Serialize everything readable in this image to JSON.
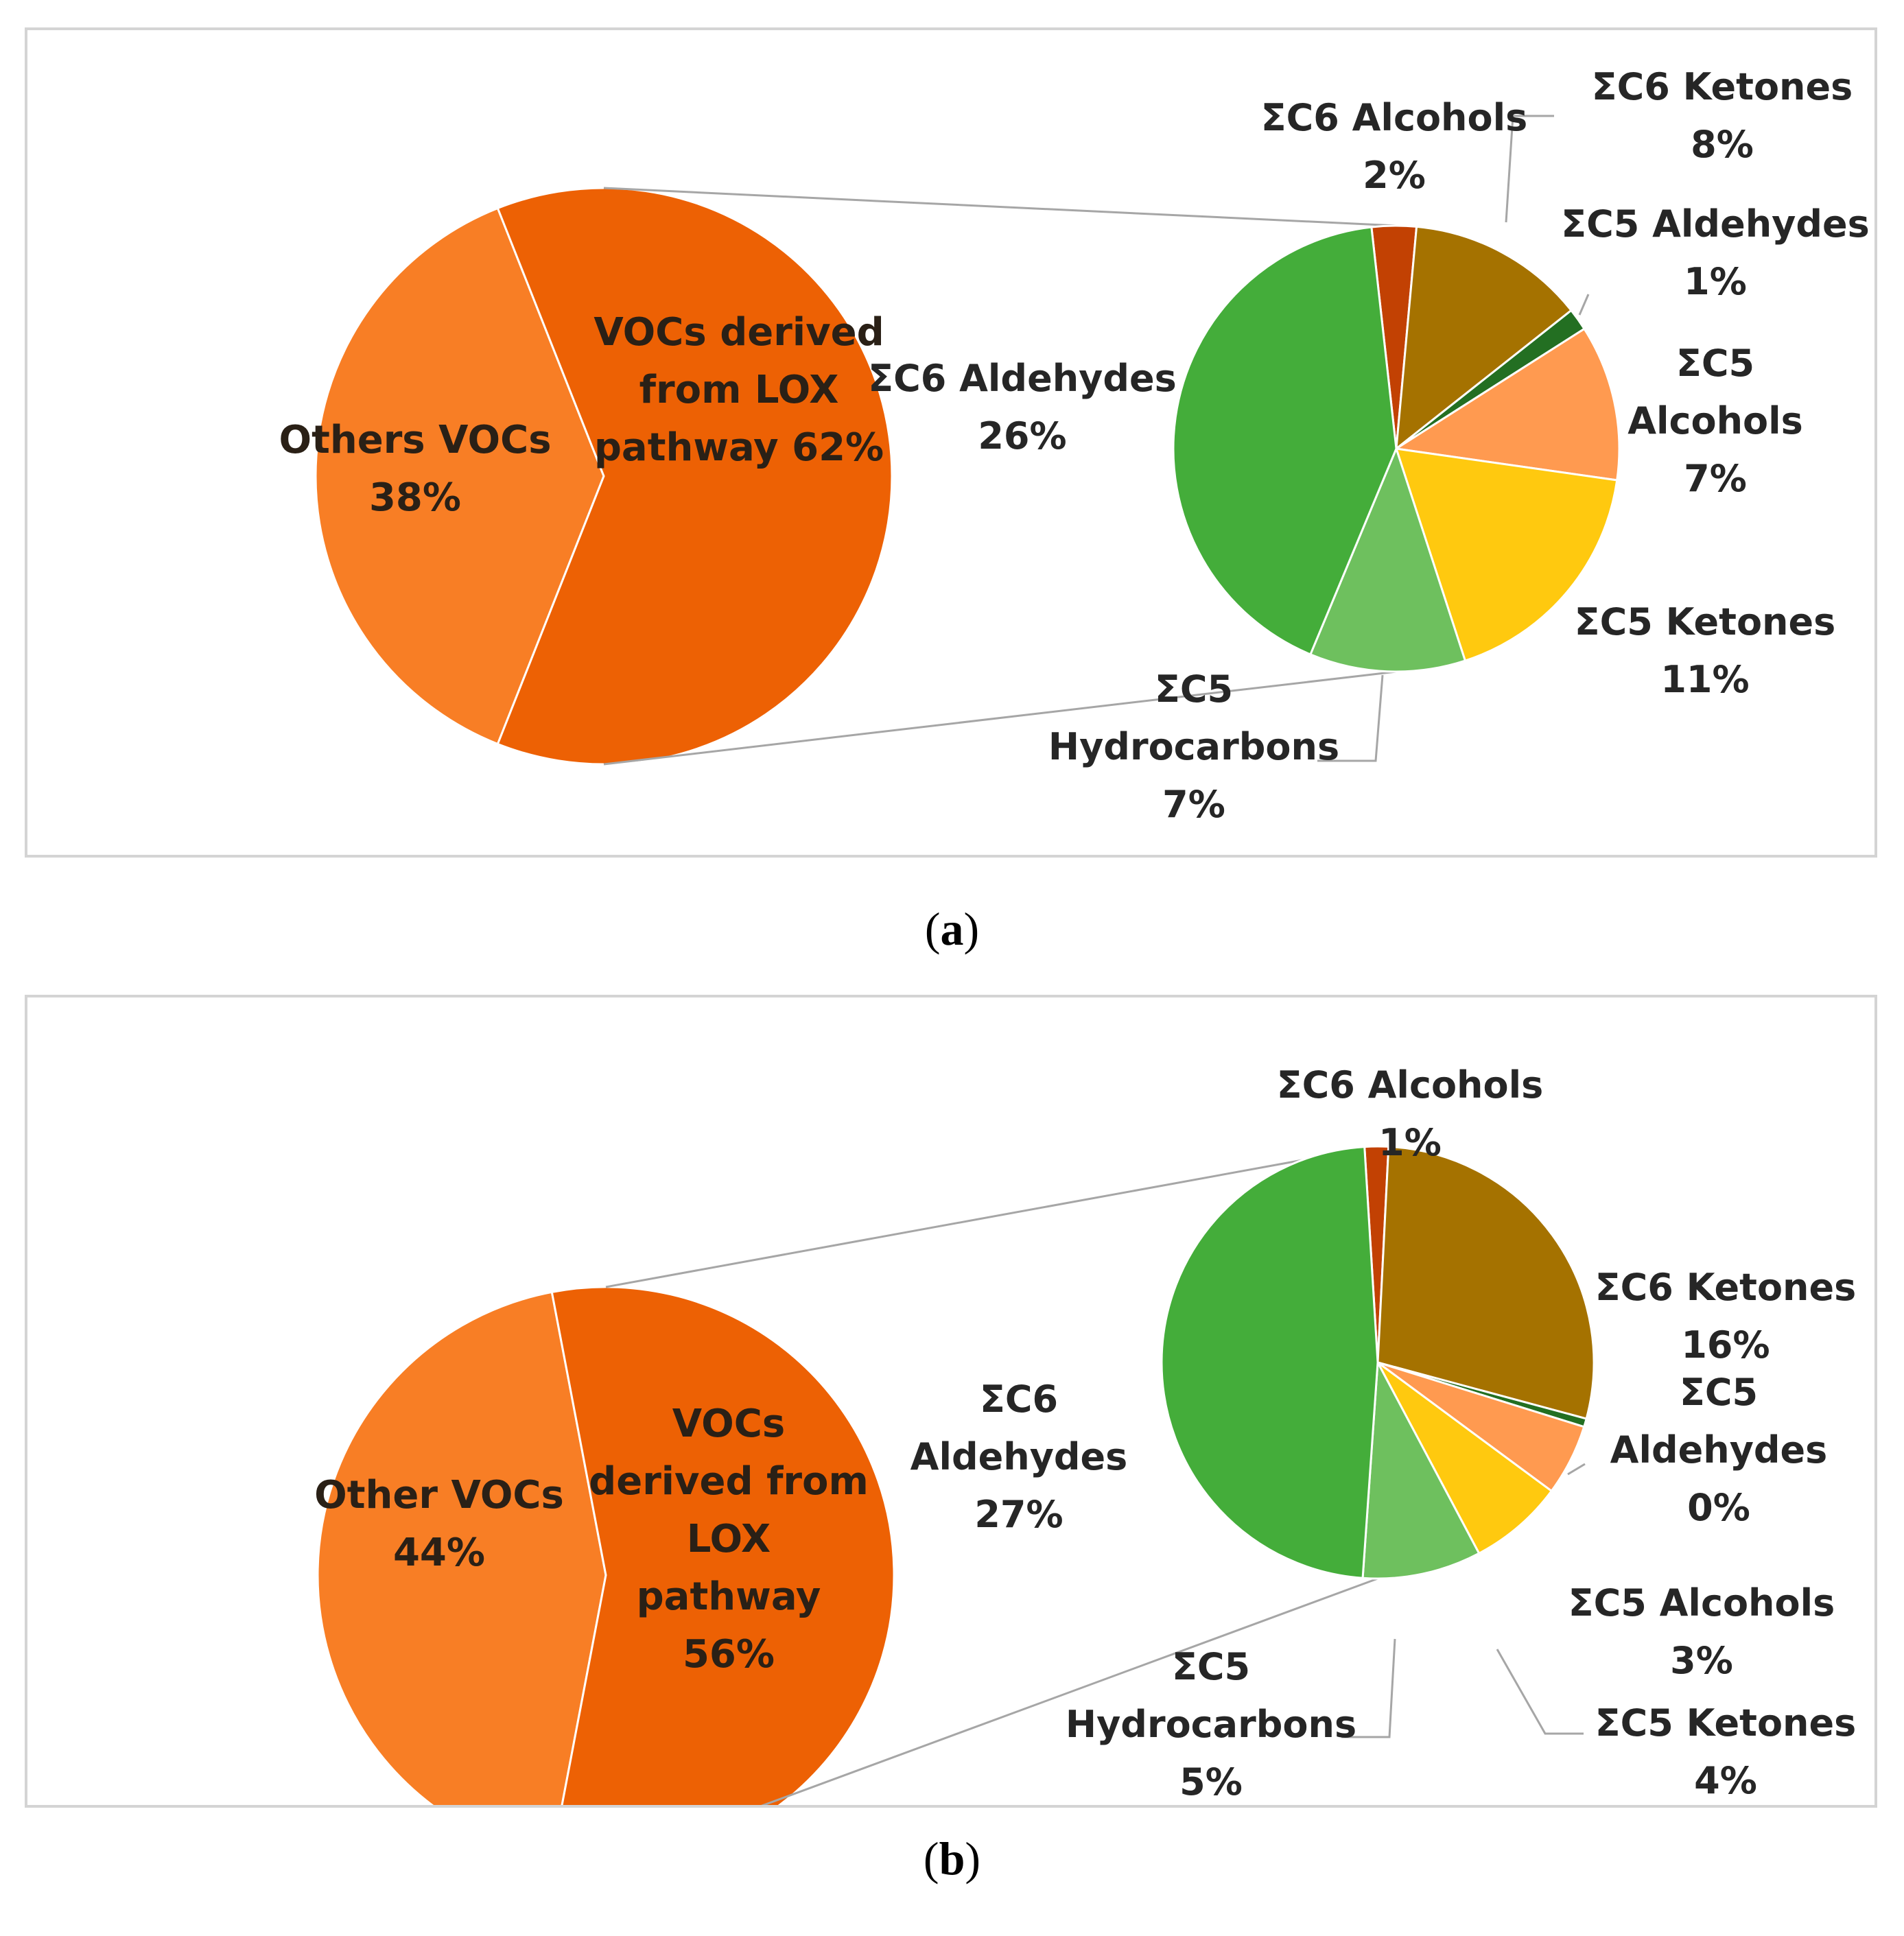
{
  "chart_data": [
    {
      "type": "pie",
      "panel": "a",
      "caption": "a",
      "main_pie": {
        "slices": [
          {
            "label": "VOCs derived from LOX pathway",
            "value": 62,
            "text": [
              "VOCs derived",
              "from LOX",
              "pathway 62%"
            ],
            "color": "#ED6104"
          },
          {
            "label": "Others VOCs",
            "value": 38,
            "text": [
              "Others VOCs",
              "38%"
            ],
            "color": "#F87E25"
          }
        ]
      },
      "sub_pie": {
        "slices": [
          {
            "label": "ΣC6 Alcohols",
            "value": 2,
            "text": [
              "ΣC6 Alcohols",
              "2%"
            ],
            "color": "#C24103"
          },
          {
            "label": "ΣC6 Ketones",
            "value": 8,
            "text": [
              "ΣC6 Ketones",
              "8%"
            ],
            "color": "#A57200"
          },
          {
            "label": "ΣC5 Aldehydes",
            "value": 1,
            "text": [
              "ΣC5 Aldehydes",
              "1%"
            ],
            "color": "#236F22"
          },
          {
            "label": "ΣC5 Alcohols",
            "value": 7,
            "text": [
              "ΣC5",
              "Alcohols",
              "7%"
            ],
            "color": "#FF9A50"
          },
          {
            "label": "ΣC5 Ketones",
            "value": 11,
            "text": [
              "ΣC5 Ketones",
              "11%"
            ],
            "color": "#FFC90F"
          },
          {
            "label": "ΣC5 Hydrocarbons",
            "value": 7,
            "text": [
              "ΣC5",
              "Hydrocarbons",
              "7%"
            ],
            "color": "#6EC05E"
          },
          {
            "label": "ΣC6 Aldehydes",
            "value": 26,
            "text": [
              "ΣC6 Aldehydes",
              "26%"
            ],
            "color": "#44AD3A"
          }
        ]
      }
    },
    {
      "type": "pie",
      "panel": "b",
      "caption": "b",
      "main_pie": {
        "slices": [
          {
            "label": "VOCs derived from LOX pathway",
            "value": 56,
            "text": [
              "VOCs",
              "derived from",
              "LOX",
              "pathway",
              "56%"
            ],
            "color": "#ED6104"
          },
          {
            "label": "Other VOCs",
            "value": 44,
            "text": [
              "Other VOCs",
              "44%"
            ],
            "color": "#F87E25"
          }
        ]
      },
      "sub_pie": {
        "slices": [
          {
            "label": "ΣC6 Alcohols",
            "value": 1,
            "text": [
              "ΣC6 Alcohols",
              "1%"
            ],
            "color": "#C24103"
          },
          {
            "label": "ΣC6 Ketones",
            "value": 16,
            "text": [
              "ΣC6 Ketones",
              "16%"
            ],
            "color": "#A57200"
          },
          {
            "label": "ΣC5 Aldehydes",
            "value": 0,
            "text": [
              "ΣC5",
              "Aldehydes",
              "0%"
            ],
            "color": "#236F22"
          },
          {
            "label": "ΣC5 Alcohols",
            "value": 3,
            "text": [
              "ΣC5 Alcohols",
              "3%"
            ],
            "color": "#FF9A50"
          },
          {
            "label": "ΣC5 Ketones",
            "value": 4,
            "text": [
              "ΣC5 Ketones",
              "4%"
            ],
            "color": "#FFC90F"
          },
          {
            "label": "ΣC5 Hydrocarbons",
            "value": 5,
            "text": [
              "ΣC5",
              "Hydrocarbons",
              "5%"
            ],
            "color": "#6EC05E"
          },
          {
            "label": "ΣC6 Aldehydes",
            "value": 27,
            "text": [
              "ΣC6",
              "Aldehydes",
              "27%"
            ],
            "color": "#44AD3A"
          }
        ]
      }
    }
  ],
  "colors": {
    "leader_line": "#A6A6A6",
    "panel_border": "#D4D4D4",
    "label_text": "#262626"
  }
}
